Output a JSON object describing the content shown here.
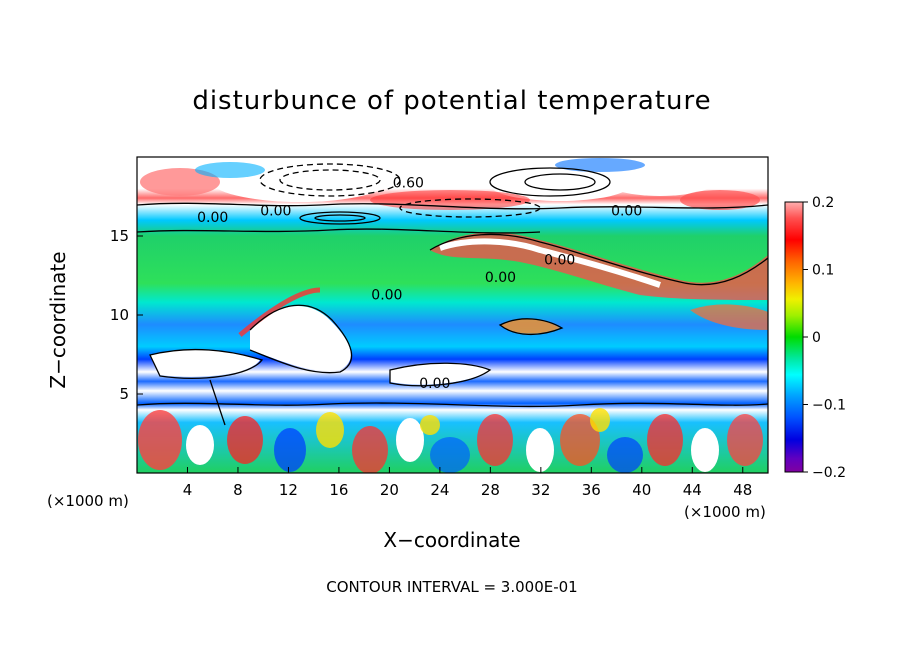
{
  "chart_data": {
    "type": "heatmap",
    "title": "disturbunce of potential temperature",
    "xlabel": "X−coordinate",
    "ylabel": "Z−coordinate",
    "x_unit": "(×1000 m)",
    "z_unit": "(×1000 m)",
    "xlim": [
      0,
      50
    ],
    "ylim": [
      0,
      20
    ],
    "x_ticks": [
      4,
      8,
      12,
      16,
      20,
      24,
      28,
      32,
      36,
      40,
      44,
      48
    ],
    "y_ticks": [
      5,
      10,
      15
    ],
    "colorbar": {
      "ticks": [
        "0.2",
        "0.1",
        "0",
        "−0.1",
        "−0.2"
      ],
      "tick_values": [
        0.2,
        0.1,
        0,
        -0.1,
        -0.2
      ],
      "range": [
        -0.2,
        0.2
      ]
    },
    "contour_labels": [
      {
        "text": "0.60",
        "x": 21.5,
        "z": 18.4
      },
      {
        "text": "0.00",
        "x": 6.0,
        "z": 16.2
      },
      {
        "text": "0.00",
        "x": 11.0,
        "z": 16.6
      },
      {
        "text": "0.00",
        "x": 38.8,
        "z": 16.6
      },
      {
        "text": "0.00",
        "x": 33.5,
        "z": 13.5
      },
      {
        "text": "0.00",
        "x": 28.8,
        "z": 12.4
      },
      {
        "text": "0.00",
        "x": 19.8,
        "z": 11.3
      },
      {
        "text": "0.00",
        "x": 23.6,
        "z": 5.7
      }
    ],
    "contour_interval": "CONTOUR INTERVAL = 3.000E-01"
  }
}
